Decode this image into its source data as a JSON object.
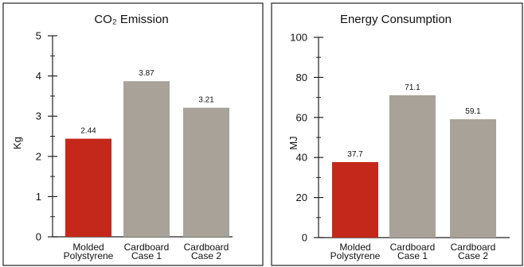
{
  "chart_data": [
    {
      "type": "bar",
      "title": "CO₂ Emission",
      "ylabel": "Kg",
      "xlabel": "",
      "categories": [
        "Molded Polystyrene",
        "Cardboard Case 1",
        "Cardboard Case 2"
      ],
      "category_lines": [
        [
          "Molded",
          "Polystyrene"
        ],
        [
          "Cardboard",
          "Case 1"
        ],
        [
          "Cardboard",
          "Case 2"
        ]
      ],
      "values": [
        2.44,
        3.87,
        3.21
      ],
      "value_labels": [
        "2.44",
        "3.87",
        "3.21"
      ],
      "bar_colors": [
        "#c4281a",
        "#a8a299",
        "#a8a299"
      ],
      "ylim": [
        0,
        5
      ],
      "yticks": [
        0,
        1,
        2,
        3,
        4,
        5
      ],
      "ytick_labels": [
        "0",
        "1",
        "2",
        "3",
        "4",
        "5"
      ],
      "minor_ticks_per_major": 2,
      "grid": false
    },
    {
      "type": "bar",
      "title": "Energy Consumption",
      "ylabel": "MJ",
      "xlabel": "",
      "categories": [
        "Molded Polystyrene",
        "Cardboard Case 1",
        "Cardboard Case 2"
      ],
      "category_lines": [
        [
          "Molded",
          "Polystyrene"
        ],
        [
          "Cardboard",
          "Case 1"
        ],
        [
          "Cardboard",
          "Case 2"
        ]
      ],
      "values": [
        37.7,
        71.1,
        59.1
      ],
      "value_labels": [
        "37.7",
        "71.1",
        "59.1"
      ],
      "bar_colors": [
        "#c4281a",
        "#a8a299",
        "#a8a299"
      ],
      "ylim": [
        0,
        100
      ],
      "yticks": [
        0,
        20,
        40,
        60,
        80,
        100
      ],
      "ytick_labels": [
        "0",
        "20",
        "40",
        "60",
        "80",
        "100"
      ],
      "minor_ticks_per_major": 2,
      "grid": false
    }
  ]
}
